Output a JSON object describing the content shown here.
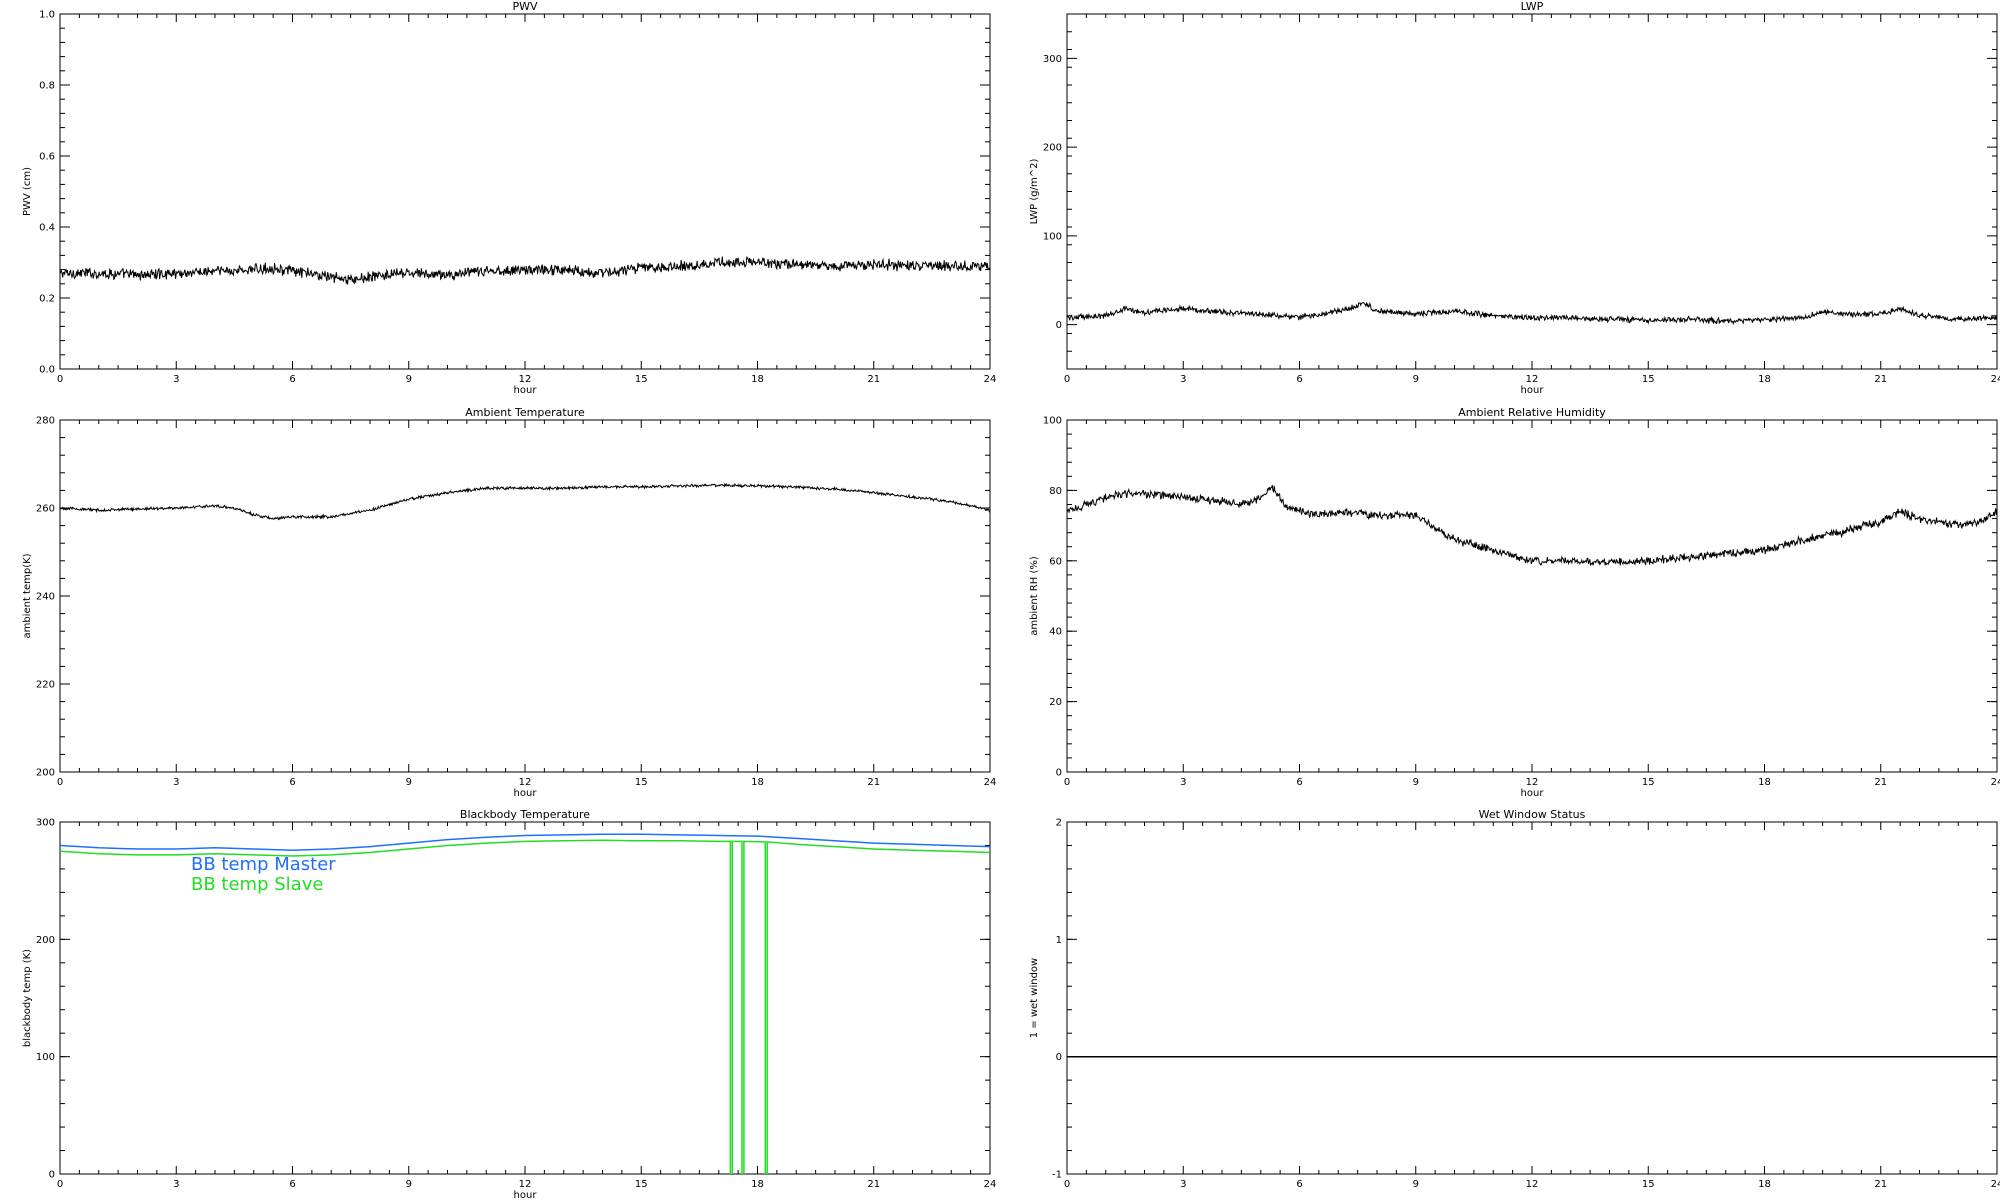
{
  "chart_data": [
    {
      "type": "line",
      "title": "PWV",
      "xlabel": "hour",
      "ylabel": "PWV (cm)",
      "xlim": [
        0,
        24
      ],
      "ylim": [
        0.0,
        1.0
      ],
      "xticks": [
        0,
        3,
        6,
        9,
        12,
        15,
        18,
        21,
        24
      ],
      "xtick_labels": [
        "0",
        "3",
        "6",
        "9",
        "12",
        "15",
        "18",
        "21",
        "24"
      ],
      "yticks": [
        0.0,
        0.2,
        0.4,
        0.6,
        0.8,
        1.0
      ],
      "ytick_labels": [
        "0.0",
        "0.2",
        "0.4",
        "0.6",
        "0.8",
        "1.0"
      ],
      "series": [
        {
          "color": "#000000",
          "noise": 0.012,
          "x": [
            0,
            1,
            2,
            3,
            4,
            5,
            5.5,
            6,
            7,
            7.5,
            8,
            9,
            10,
            11,
            12,
            13,
            14,
            15,
            16,
            17,
            18,
            19,
            20,
            21,
            22,
            23,
            24
          ],
          "y": [
            0.27,
            0.27,
            0.265,
            0.27,
            0.275,
            0.28,
            0.285,
            0.275,
            0.26,
            0.25,
            0.26,
            0.27,
            0.265,
            0.275,
            0.28,
            0.28,
            0.27,
            0.285,
            0.29,
            0.3,
            0.3,
            0.295,
            0.29,
            0.295,
            0.29,
            0.29,
            0.29
          ]
        }
      ]
    },
    {
      "type": "line",
      "title": "LWP",
      "xlabel": "hour",
      "ylabel": "LWP (g/m^2)",
      "xlim": [
        0,
        24
      ],
      "ylim": [
        -50,
        350
      ],
      "xticks": [
        0,
        3,
        6,
        9,
        12,
        15,
        18,
        21,
        24
      ],
      "xtick_labels": [
        "0",
        "3",
        "6",
        "9",
        "12",
        "15",
        "18",
        "21",
        "24"
      ],
      "yticks": [
        0,
        100,
        200,
        300
      ],
      "ytick_labels": [
        "0",
        "100",
        "200",
        "300"
      ],
      "series": [
        {
          "color": "#000000",
          "noise": 2.5,
          "x": [
            0,
            1,
            1.5,
            2,
            3,
            4,
            5,
            6,
            7,
            7.7,
            8,
            9,
            10,
            11,
            12,
            13,
            14,
            15,
            16,
            17,
            18,
            19,
            19.5,
            20,
            21,
            21.5,
            22,
            23,
            24
          ],
          "y": [
            8,
            10,
            18,
            14,
            18,
            14,
            12,
            8,
            15,
            24,
            15,
            12,
            15,
            10,
            8,
            8,
            6,
            5,
            6,
            4,
            5,
            8,
            14,
            12,
            12,
            18,
            10,
            6,
            8
          ]
        }
      ]
    },
    {
      "type": "line",
      "title": "Ambient Temperature",
      "xlabel": "hour",
      "ylabel": "ambient temp(K)",
      "xlim": [
        0,
        24
      ],
      "ylim": [
        200,
        280
      ],
      "xticks": [
        0,
        3,
        6,
        9,
        12,
        15,
        18,
        21,
        24
      ],
      "xtick_labels": [
        "0",
        "3",
        "6",
        "9",
        "12",
        "15",
        "18",
        "21",
        "24"
      ],
      "yticks": [
        200,
        220,
        240,
        260,
        280
      ],
      "ytick_labels": [
        "200",
        "220",
        "240",
        "260",
        "280"
      ],
      "series": [
        {
          "color": "#000000",
          "noise": 0.25,
          "x": [
            0,
            1,
            2,
            3,
            4,
            4.5,
            5,
            5.5,
            6,
            7,
            8,
            9,
            10,
            11,
            12,
            13,
            14,
            15,
            16,
            17,
            18,
            19,
            20,
            21,
            22,
            23,
            24
          ],
          "y": [
            260,
            259.5,
            259.8,
            260,
            260.5,
            260,
            258.5,
            257.5,
            258,
            258,
            259.5,
            262,
            263.5,
            264.5,
            264.5,
            264.5,
            264.8,
            264.8,
            265,
            265.2,
            265,
            264.8,
            264.3,
            263.5,
            262.5,
            261.5,
            259.5
          ]
        }
      ]
    },
    {
      "type": "line",
      "title": "Ambient Relative Humidity",
      "xlabel": "hour",
      "ylabel": "ambient RH (%)",
      "xlim": [
        0,
        24
      ],
      "ylim": [
        0,
        100
      ],
      "xticks": [
        0,
        3,
        6,
        9,
        12,
        15,
        18,
        21,
        24
      ],
      "xtick_labels": [
        "0",
        "3",
        "6",
        "9",
        "12",
        "15",
        "18",
        "21",
        "24"
      ],
      "yticks": [
        0,
        20,
        40,
        60,
        80,
        100
      ],
      "ytick_labels": [
        "0",
        "20",
        "40",
        "60",
        "80",
        "100"
      ],
      "series": [
        {
          "color": "#000000",
          "noise": 0.9,
          "x": [
            0,
            0.5,
            1,
            1.5,
            2,
            3,
            4,
            4.5,
            5,
            5.3,
            5.6,
            6,
            6.5,
            7,
            8,
            9,
            10,
            11,
            12,
            13,
            14,
            15,
            16,
            17,
            18,
            19,
            20,
            20.5,
            21,
            21.5,
            22,
            23,
            23.5,
            24
          ],
          "y": [
            74,
            76,
            78,
            79,
            79,
            78,
            77,
            76,
            78,
            81,
            76,
            74,
            73,
            74,
            73,
            73,
            66,
            63,
            60,
            60,
            59.5,
            60,
            61,
            62,
            63,
            66,
            68,
            70,
            71,
            74,
            72,
            70,
            71,
            74
          ]
        }
      ]
    },
    {
      "type": "line",
      "title": "Blackbody Temperature",
      "xlabel": "hour",
      "ylabel": "blackbody temp (K)",
      "xlim": [
        0,
        24
      ],
      "ylim": [
        0,
        300
      ],
      "xticks": [
        0,
        3,
        6,
        9,
        12,
        15,
        18,
        21,
        24
      ],
      "xtick_labels": [
        "0",
        "3",
        "6",
        "9",
        "12",
        "15",
        "18",
        "21",
        "24"
      ],
      "yticks": [
        0,
        100,
        200,
        300
      ],
      "ytick_labels": [
        "0",
        "100",
        "200",
        "300"
      ],
      "legend": [
        "BB temp Master",
        "BB temp Slave"
      ],
      "legend_colors": [
        "#1f6fff",
        "#22dd22"
      ],
      "series": [
        {
          "name": "BB temp Master",
          "color": "#1f6fff",
          "noise": 0,
          "x": [
            0,
            1,
            2,
            3,
            4,
            5,
            6,
            7,
            8,
            9,
            10,
            11,
            12,
            13,
            14,
            15,
            16,
            17,
            18,
            19,
            20,
            21,
            22,
            23,
            24
          ],
          "y": [
            280,
            278,
            277,
            277,
            278,
            277,
            276,
            277,
            279,
            282,
            285,
            287,
            288.5,
            289,
            289.5,
            289.5,
            289,
            288.5,
            288,
            286,
            284,
            282,
            281,
            280,
            279
          ]
        },
        {
          "name": "BB temp Slave",
          "color": "#22dd22",
          "noise": 0,
          "x": [
            0,
            1,
            2,
            3,
            4,
            5,
            6,
            7,
            8,
            9,
            10,
            11,
            12,
            13,
            14,
            15,
            16,
            17,
            17.3,
            17.3,
            17.35,
            17.35,
            17.6,
            17.6,
            17.65,
            17.65,
            18.2,
            18.2,
            18.25,
            18.25,
            19,
            20,
            21,
            22,
            23,
            24
          ],
          "y": [
            275,
            273,
            272,
            272,
            273,
            272,
            271,
            272,
            274,
            277,
            280,
            282,
            283.5,
            284,
            284.5,
            284,
            284,
            283.5,
            283.5,
            0,
            0,
            283.5,
            283.5,
            0,
            0,
            283.5,
            283,
            0,
            0,
            283,
            281,
            279,
            277,
            276,
            275,
            274
          ]
        }
      ]
    },
    {
      "type": "line",
      "title": "Wet Window Status",
      "xlabel": "",
      "ylabel": "1 = wet window",
      "xlim": [
        0,
        24
      ],
      "ylim": [
        -1,
        2
      ],
      "xticks": [
        0,
        3,
        6,
        9,
        12,
        15,
        18,
        21,
        24
      ],
      "xtick_labels": [
        "0",
        "3",
        "6",
        "9",
        "12",
        "15",
        "18",
        "21",
        "24"
      ],
      "yticks": [
        -1,
        0,
        1,
        2
      ],
      "ytick_labels": [
        "-1",
        "0",
        "1",
        "2"
      ],
      "series": [
        {
          "color": "#000000",
          "noise": 0,
          "x": [
            0,
            24
          ],
          "y": [
            0,
            0
          ]
        }
      ]
    }
  ]
}
